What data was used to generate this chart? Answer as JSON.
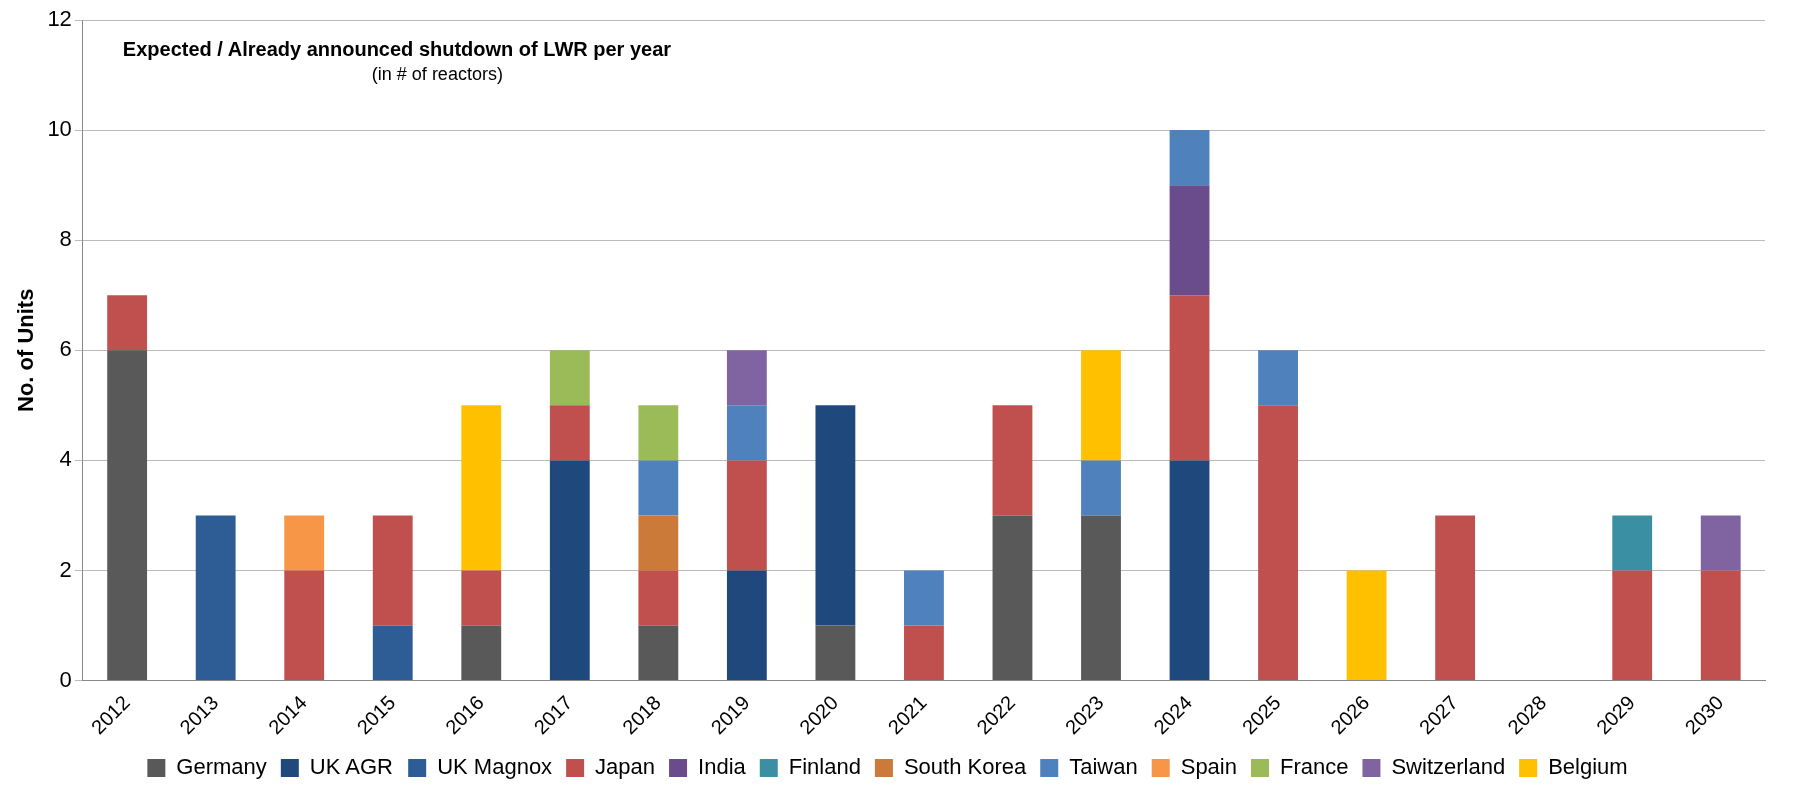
{
  "chart_data": {
    "type": "bar",
    "stacked": true,
    "title": "Expected / Already announced shutdown of LWR per year",
    "subtitle": "(in # of reactors)",
    "ylabel": "No. of Units",
    "categories": [
      "2012",
      "2013",
      "2014",
      "2015",
      "2016",
      "2017",
      "2018",
      "2019",
      "2020",
      "2021",
      "2022",
      "2023",
      "2024",
      "2025",
      "2026",
      "2027",
      "2028",
      "2029",
      "2030"
    ],
    "series": [
      {
        "name": "Germany",
        "color": "#595959",
        "values": [
          6,
          0,
          0,
          0,
          1,
          0,
          1,
          0,
          1,
          0,
          3,
          3,
          0,
          0,
          0,
          0,
          0,
          0,
          0
        ]
      },
      {
        "name": "UK AGR",
        "color": "#1f497d",
        "values": [
          0,
          0,
          0,
          0,
          0,
          4,
          0,
          2,
          4,
          0,
          0,
          0,
          4,
          0,
          0,
          0,
          0,
          0,
          0
        ]
      },
      {
        "name": "UK Magnox",
        "color": "#2e5c94",
        "values": [
          0,
          3,
          0,
          1,
          0,
          0,
          0,
          0,
          0,
          0,
          0,
          0,
          0,
          0,
          0,
          0,
          0,
          0,
          0
        ]
      },
      {
        "name": "Japan",
        "color": "#c0504d",
        "values": [
          1,
          0,
          2,
          2,
          1,
          1,
          1,
          2,
          0,
          1,
          2,
          0,
          3,
          5,
          0,
          3,
          0,
          2,
          2
        ]
      },
      {
        "name": "India",
        "color": "#6a4c8c",
        "values": [
          0,
          0,
          0,
          0,
          0,
          0,
          0,
          0,
          0,
          0,
          0,
          0,
          2,
          0,
          0,
          0,
          0,
          0,
          0
        ]
      },
      {
        "name": "Finland",
        "color": "#3a8fa3",
        "values": [
          0,
          0,
          0,
          0,
          0,
          0,
          0,
          0,
          0,
          0,
          0,
          0,
          0,
          0,
          0,
          0,
          0,
          1,
          0
        ]
      },
      {
        "name": "South Korea",
        "color": "#cc7a3a",
        "values": [
          0,
          0,
          0,
          0,
          0,
          0,
          1,
          0,
          0,
          0,
          0,
          0,
          0,
          0,
          0,
          0,
          0,
          0,
          0
        ]
      },
      {
        "name": "Taiwan",
        "color": "#4f81bd",
        "values": [
          0,
          0,
          0,
          0,
          0,
          0,
          1,
          1,
          0,
          1,
          0,
          1,
          1,
          1,
          0,
          0,
          0,
          0,
          0
        ]
      },
      {
        "name": "Spain",
        "color": "#f79646",
        "values": [
          0,
          0,
          1,
          0,
          0,
          0,
          0,
          0,
          0,
          0,
          0,
          0,
          0,
          0,
          0,
          0,
          0,
          0,
          0
        ]
      },
      {
        "name": "France",
        "color": "#9bbb59",
        "values": [
          0,
          0,
          0,
          0,
          0,
          1,
          1,
          0,
          0,
          0,
          0,
          0,
          0,
          0,
          0,
          0,
          0,
          0,
          0
        ]
      },
      {
        "name": "Switzerland",
        "color": "#8064a2",
        "values": [
          0,
          0,
          0,
          0,
          0,
          0,
          0,
          1,
          0,
          0,
          0,
          0,
          0,
          0,
          0,
          0,
          0,
          0,
          1
        ]
      },
      {
        "name": "Belgium",
        "color": "#ffc000",
        "values": [
          0,
          0,
          0,
          0,
          3,
          0,
          0,
          0,
          0,
          0,
          0,
          2,
          0,
          0,
          2,
          0,
          0,
          0,
          0
        ]
      }
    ],
    "ylim": [
      0,
      12
    ],
    "yticks": [
      0,
      2,
      4,
      6,
      8,
      10,
      12
    ],
    "grid": "y",
    "legend": "bottom"
  }
}
